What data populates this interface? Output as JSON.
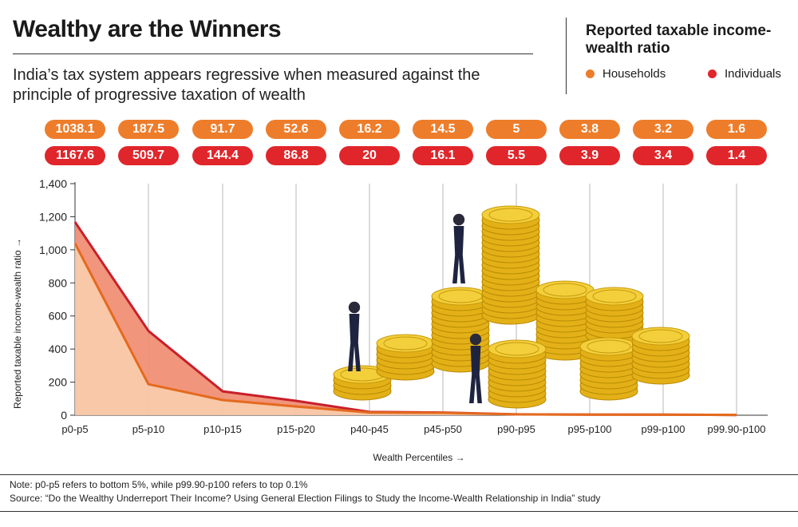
{
  "header": {
    "title": "Wealthy are the Winners",
    "subtitle": "India’s tax system appears regressive when measured against the principle of progressive taxation of wealth"
  },
  "legend": {
    "title": "Reported taxable income-wealth ratio",
    "items": [
      {
        "label": "Households",
        "color": "#ee7d2b"
      },
      {
        "label": "Individuals",
        "color": "#e0262b"
      }
    ]
  },
  "value_labels": {
    "households": [
      "1038.1",
      "187.5",
      "91.7",
      "52.6",
      "16.2",
      "14.5",
      "5",
      "3.8",
      "3.2",
      "1.6"
    ],
    "individuals": [
      "1167.6",
      "509.7",
      "144.4",
      "86.8",
      "20",
      "16.1",
      "5.5",
      "3.9",
      "3.4",
      "1.4"
    ]
  },
  "chart_data": {
    "type": "area",
    "categories": [
      "p0-p5",
      "p5-p10",
      "p10-p15",
      "p15-p20",
      "p40-p45",
      "p45-p50",
      "p90-p95",
      "p95-p100",
      "p99-p100",
      "p99.90-p100"
    ],
    "series": [
      {
        "name": "Households",
        "color": "#ee7d2b",
        "values": [
          1038.1,
          187.5,
          91.7,
          52.6,
          16.2,
          14.5,
          5,
          3.8,
          3.2,
          1.6
        ]
      },
      {
        "name": "Individuals",
        "color": "#e0262b",
        "values": [
          1167.6,
          509.7,
          144.4,
          86.8,
          20,
          16.1,
          5.5,
          3.9,
          3.4,
          1.4
        ]
      }
    ],
    "xlabel": "Wealth Percentiles →",
    "ylabel": "Reported taxable income-wealth ratio →",
    "ylim": [
      0,
      1400
    ],
    "yticks": [
      0,
      200,
      400,
      600,
      800,
      "1,000",
      "1,200",
      "1,400"
    ],
    "grid": "vertical",
    "legend_position": "top-right"
  },
  "footer": {
    "note": "Note: p0-p5 refers to bottom 5%, while p99.90-p100 refers to top 0.1%",
    "source": "Source: “Do the Wealthy Underreport Their Income? Using General Election Filings to Study the Income-Wealth Relationship in India” study"
  }
}
